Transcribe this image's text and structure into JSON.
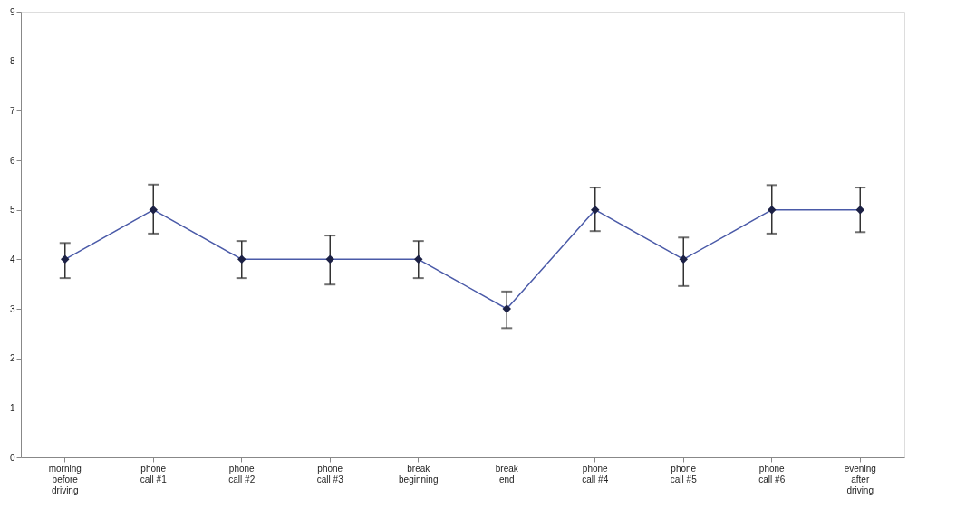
{
  "chart_data": {
    "type": "line",
    "categories": [
      "morning\nbefore\ndriving",
      "phone\ncall #1",
      "phone\ncall #2",
      "phone\ncall #3",
      "break\nbeginning",
      "break\nend",
      "phone\ncall #4",
      "phone\ncall #5",
      "phone\ncall #6",
      "evening\nafter\ndriving"
    ],
    "series": [
      {
        "color": "#4a5aa8",
        "values": [
          4,
          5,
          4,
          4,
          4,
          3,
          5,
          4,
          5,
          5
        ],
        "errors": [
          [
            3.62,
            4.33
          ],
          [
            4.52,
            5.51
          ],
          [
            3.62,
            4.37
          ],
          [
            3.49,
            4.48
          ],
          [
            3.62,
            4.37
          ],
          [
            2.61,
            3.35
          ],
          [
            4.57,
            5.45
          ],
          [
            3.46,
            4.44
          ],
          [
            4.52,
            5.5
          ],
          [
            4.55,
            5.45
          ]
        ]
      }
    ],
    "ylim": [
      0,
      9
    ],
    "yticks": [
      0,
      1,
      2,
      3,
      4,
      5,
      6,
      7,
      8,
      9
    ],
    "marker": "diamond",
    "line_style": "solid",
    "grid": false,
    "legend": false
  }
}
